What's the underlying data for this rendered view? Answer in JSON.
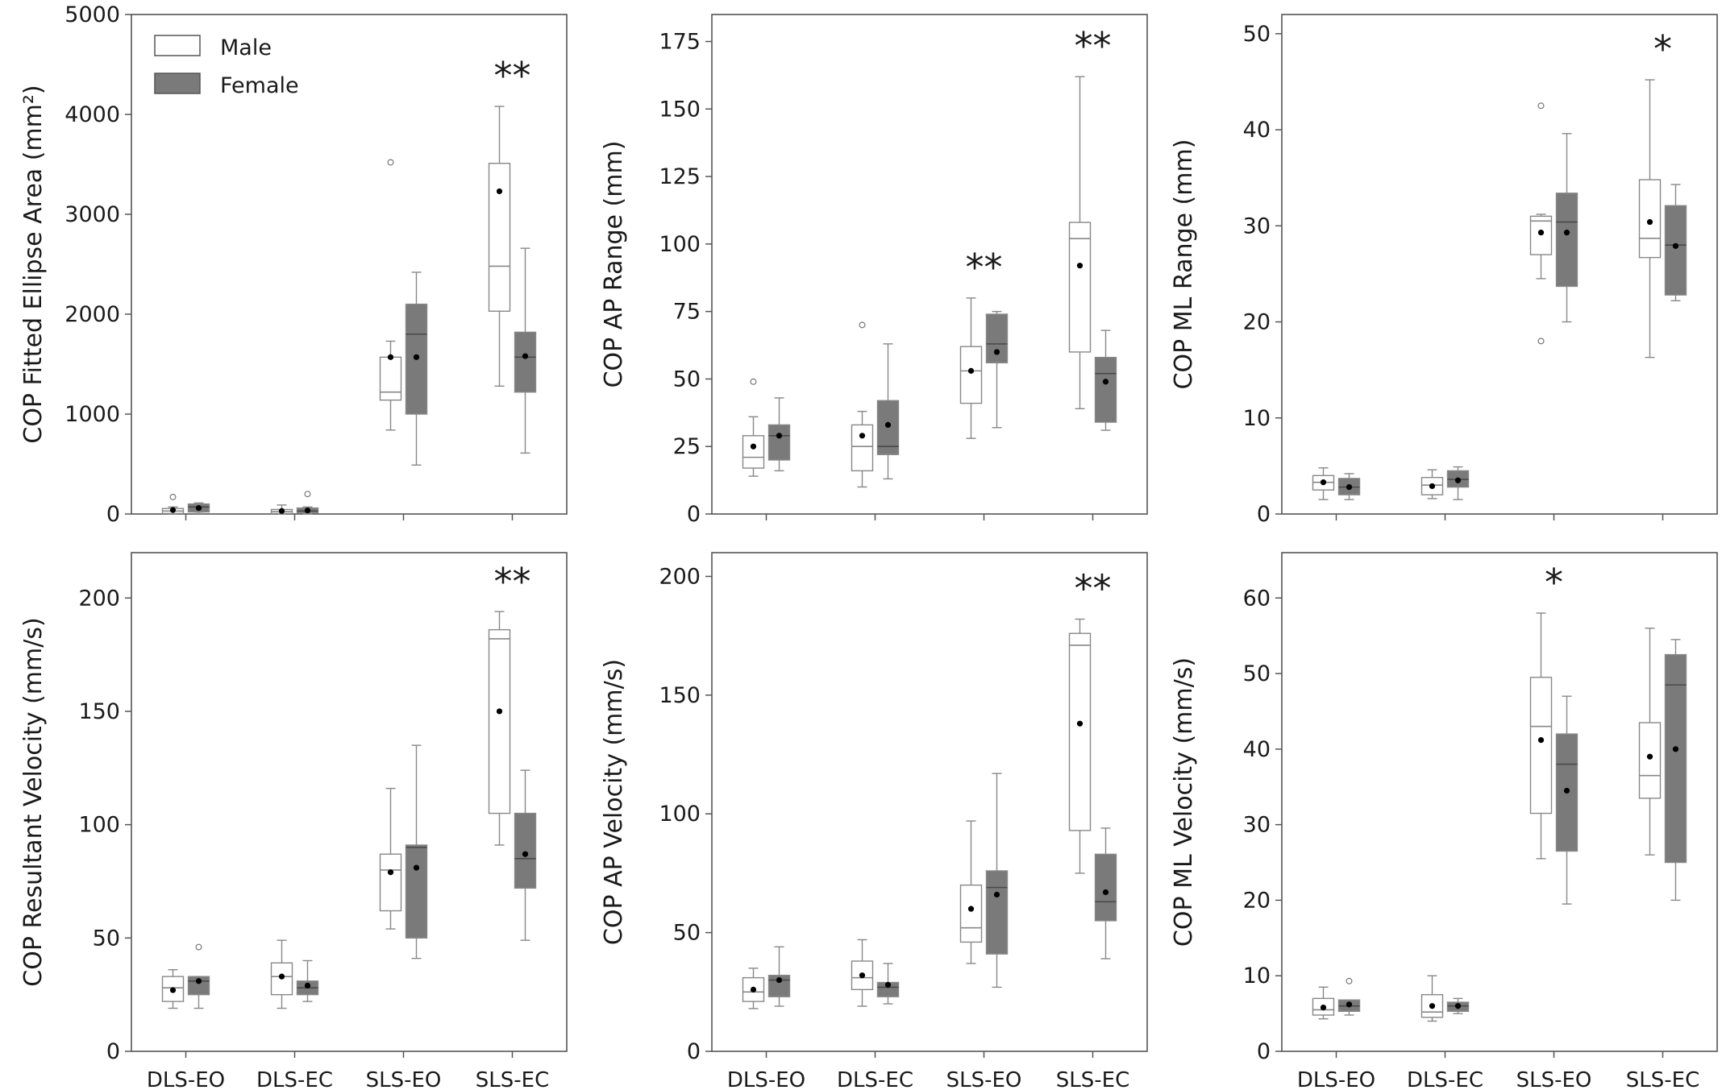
{
  "legend": {
    "entries": [
      {
        "label": "Male",
        "color": "#ffffff"
      },
      {
        "label": "Female",
        "color": "#7a7a7a"
      }
    ]
  },
  "colors": {
    "male_fill": "#ffffff",
    "female_fill": "#7a7a7a",
    "stroke": "#888888"
  },
  "chart_data": [
    {
      "type": "box",
      "ylabel": "COP Fitted Ellipse Area (mm²)",
      "ylim": [
        0,
        5000
      ],
      "yticks": [
        0,
        1000,
        2000,
        3000,
        4000,
        5000
      ],
      "categories": [
        "DLS-EO",
        "DLS-EC",
        "SLS-EO",
        "SLS-EC"
      ],
      "show_category_labels": false,
      "significance": [
        "",
        "",
        "",
        "**"
      ],
      "series": [
        {
          "name": "Male",
          "boxes": [
            {
              "whislo": 0,
              "q1": 5,
              "med": 30,
              "q3": 55,
              "whishi": 70,
              "mean": 40,
              "outliers": [
                170
              ]
            },
            {
              "whislo": 0,
              "q1": 5,
              "med": 25,
              "q3": 45,
              "whishi": 90,
              "mean": 30,
              "outliers": []
            },
            {
              "whislo": 840,
              "q1": 1140,
              "med": 1220,
              "q3": 1570,
              "whishi": 1730,
              "mean": 1570,
              "outliers": [
                3520
              ]
            },
            {
              "whislo": 1280,
              "q1": 2030,
              "med": 2480,
              "q3": 3510,
              "whishi": 4080,
              "mean": 3230,
              "outliers": []
            }
          ]
        },
        {
          "name": "Female",
          "boxes": [
            {
              "whislo": 5,
              "q1": 20,
              "med": 70,
              "q3": 100,
              "whishi": 110,
              "mean": 60,
              "outliers": []
            },
            {
              "whislo": 0,
              "q1": 10,
              "med": 30,
              "q3": 60,
              "whishi": 70,
              "mean": 35,
              "outliers": [
                200
              ]
            },
            {
              "whislo": 490,
              "q1": 1000,
              "med": 1800,
              "q3": 2100,
              "whishi": 2420,
              "mean": 1570,
              "outliers": []
            },
            {
              "whislo": 610,
              "q1": 1220,
              "med": 1570,
              "q3": 1820,
              "whishi": 2660,
              "mean": 1580,
              "outliers": []
            }
          ]
        }
      ]
    },
    {
      "type": "box",
      "ylabel": "COP AP Range (mm)",
      "ylim": [
        0,
        185
      ],
      "yticks": [
        0,
        25,
        50,
        75,
        100,
        125,
        150,
        175
      ],
      "categories": [
        "DLS-EO",
        "DLS-EC",
        "SLS-EO",
        "SLS-EC"
      ],
      "show_category_labels": false,
      "significance": [
        "",
        "",
        "**",
        "**"
      ],
      "series": [
        {
          "name": "Male",
          "boxes": [
            {
              "whislo": 14,
              "q1": 17,
              "med": 21,
              "q3": 29,
              "whishi": 36,
              "mean": 25,
              "outliers": [
                49
              ]
            },
            {
              "whislo": 10,
              "q1": 16,
              "med": 25,
              "q3": 33,
              "whishi": 38,
              "mean": 29,
              "outliers": [
                70
              ]
            },
            {
              "whislo": 28,
              "q1": 41,
              "med": 53,
              "q3": 62,
              "whishi": 80,
              "mean": 53,
              "outliers": []
            },
            {
              "whislo": 39,
              "q1": 60,
              "med": 102,
              "q3": 108,
              "whishi": 162,
              "mean": 92,
              "outliers": []
            }
          ]
        },
        {
          "name": "Female",
          "boxes": [
            {
              "whislo": 16,
              "q1": 20,
              "med": 29,
              "q3": 33,
              "whishi": 43,
              "mean": 29,
              "outliers": []
            },
            {
              "whislo": 13,
              "q1": 22,
              "med": 25,
              "q3": 42,
              "whishi": 63,
              "mean": 33,
              "outliers": []
            },
            {
              "whislo": 32,
              "q1": 56,
              "med": 63,
              "q3": 74,
              "whishi": 75,
              "mean": 60,
              "outliers": []
            },
            {
              "whislo": 31,
              "q1": 34,
              "med": 52,
              "q3": 58,
              "whishi": 68,
              "mean": 49,
              "outliers": []
            }
          ]
        }
      ]
    },
    {
      "type": "box",
      "ylabel": "COP ML Range (mm)",
      "ylim": [
        0,
        52
      ],
      "yticks": [
        0,
        10,
        20,
        30,
        40,
        50
      ],
      "categories": [
        "DLS-EO",
        "DLS-EC",
        "SLS-EO",
        "SLS-EC"
      ],
      "show_category_labels": false,
      "significance": [
        "",
        "",
        "",
        "*"
      ],
      "series": [
        {
          "name": "Male",
          "boxes": [
            {
              "whislo": 1.5,
              "q1": 2.5,
              "med": 3.3,
              "q3": 4.0,
              "whishi": 4.8,
              "mean": 3.3,
              "outliers": []
            },
            {
              "whislo": 1.6,
              "q1": 2.0,
              "med": 3.0,
              "q3": 3.8,
              "whishi": 4.6,
              "mean": 2.9,
              "outliers": []
            },
            {
              "whislo": 24.5,
              "q1": 27.0,
              "med": 30.5,
              "q3": 31.0,
              "whishi": 31.2,
              "mean": 29.3,
              "outliers": [
                42.5,
                18.0
              ]
            },
            {
              "whislo": 16.3,
              "q1": 26.7,
              "med": 28.7,
              "q3": 34.8,
              "whishi": 45.2,
              "mean": 30.4,
              "outliers": []
            }
          ]
        },
        {
          "name": "Female",
          "boxes": [
            {
              "whislo": 1.5,
              "q1": 2.0,
              "med": 2.8,
              "q3": 3.7,
              "whishi": 4.2,
              "mean": 2.8,
              "outliers": []
            },
            {
              "whislo": 1.5,
              "q1": 2.8,
              "med": 3.6,
              "q3": 4.5,
              "whishi": 4.9,
              "mean": 3.5,
              "outliers": []
            },
            {
              "whislo": 20.0,
              "q1": 23.7,
              "med": 30.4,
              "q3": 33.4,
              "whishi": 39.6,
              "mean": 29.3,
              "outliers": []
            },
            {
              "whislo": 22.2,
              "q1": 22.8,
              "med": 28.0,
              "q3": 32.1,
              "whishi": 34.3,
              "mean": 27.9,
              "outliers": []
            }
          ]
        }
      ]
    },
    {
      "type": "box",
      "ylabel": "COP Resultant Velocity (mm/s)",
      "ylim": [
        0,
        220
      ],
      "yticks": [
        0,
        50,
        100,
        150,
        200
      ],
      "categories": [
        "DLS-EO",
        "DLS-EC",
        "SLS-EO",
        "SLS-EC"
      ],
      "show_category_labels": true,
      "significance": [
        "",
        "",
        "",
        "**"
      ],
      "series": [
        {
          "name": "Male",
          "boxes": [
            {
              "whislo": 19,
              "q1": 22,
              "med": 28,
              "q3": 33,
              "whishi": 36,
              "mean": 27,
              "outliers": []
            },
            {
              "whislo": 19,
              "q1": 25,
              "med": 33,
              "q3": 39,
              "whishi": 49,
              "mean": 33,
              "outliers": []
            },
            {
              "whislo": 54,
              "q1": 62,
              "med": 80,
              "q3": 87,
              "whishi": 116,
              "mean": 79,
              "outliers": []
            },
            {
              "whislo": 91,
              "q1": 105,
              "med": 182,
              "q3": 186,
              "whishi": 194,
              "mean": 150,
              "outliers": []
            }
          ]
        },
        {
          "name": "Female",
          "boxes": [
            {
              "whislo": 19,
              "q1": 25,
              "med": 31,
              "q3": 33,
              "whishi": 33,
              "mean": 31,
              "outliers": [
                46
              ]
            },
            {
              "whislo": 22,
              "q1": 25,
              "med": 28,
              "q3": 31,
              "whishi": 40,
              "mean": 29,
              "outliers": []
            },
            {
              "whislo": 41,
              "q1": 50,
              "med": 90,
              "q3": 91,
              "whishi": 135,
              "mean": 81,
              "outliers": []
            },
            {
              "whislo": 49,
              "q1": 72,
              "med": 85,
              "q3": 105,
              "whishi": 124,
              "mean": 87,
              "outliers": []
            }
          ]
        }
      ]
    },
    {
      "type": "box",
      "ylabel": "COP AP Velocity (mm/s)",
      "ylim": [
        0,
        210
      ],
      "yticks": [
        0,
        50,
        100,
        150,
        200
      ],
      "categories": [
        "DLS-EO",
        "DLS-EC",
        "SLS-EO",
        "SLS-EC"
      ],
      "show_category_labels": true,
      "significance": [
        "",
        "",
        "",
        "**"
      ],
      "series": [
        {
          "name": "Male",
          "boxes": [
            {
              "whislo": 18,
              "q1": 21,
              "med": 25,
              "q3": 31,
              "whishi": 35,
              "mean": 26,
              "outliers": []
            },
            {
              "whislo": 19,
              "q1": 26,
              "med": 31,
              "q3": 38,
              "whishi": 47,
              "mean": 32,
              "outliers": []
            },
            {
              "whislo": 37,
              "q1": 46,
              "med": 52,
              "q3": 70,
              "whishi": 97,
              "mean": 60,
              "outliers": []
            },
            {
              "whislo": 75,
              "q1": 93,
              "med": 171,
              "q3": 176,
              "whishi": 182,
              "mean": 138,
              "outliers": []
            }
          ]
        },
        {
          "name": "Female",
          "boxes": [
            {
              "whislo": 19,
              "q1": 23,
              "med": 30,
              "q3": 32,
              "whishi": 44,
              "mean": 30,
              "outliers": []
            },
            {
              "whislo": 20,
              "q1": 23,
              "med": 27,
              "q3": 29,
              "whishi": 37,
              "mean": 28,
              "outliers": []
            },
            {
              "whislo": 27,
              "q1": 41,
              "med": 69,
              "q3": 76,
              "whishi": 117,
              "mean": 66,
              "outliers": []
            },
            {
              "whislo": 39,
              "q1": 55,
              "med": 63,
              "q3": 83,
              "whishi": 94,
              "mean": 67,
              "outliers": []
            }
          ]
        }
      ]
    },
    {
      "type": "box",
      "ylabel": "COP ML Velocity (mm/s)",
      "ylim": [
        0,
        66
      ],
      "yticks": [
        0,
        10,
        20,
        30,
        40,
        50,
        60
      ],
      "categories": [
        "DLS-EO",
        "DLS-EC",
        "SLS-EO",
        "SLS-EC"
      ],
      "show_category_labels": true,
      "significance": [
        "",
        "",
        "*",
        ""
      ],
      "series": [
        {
          "name": "Male",
          "boxes": [
            {
              "whislo": 4.3,
              "q1": 4.8,
              "med": 5.5,
              "q3": 7.0,
              "whishi": 8.5,
              "mean": 5.8,
              "outliers": []
            },
            {
              "whislo": 4.0,
              "q1": 4.5,
              "med": 5.2,
              "q3": 7.5,
              "whishi": 10.0,
              "mean": 6.0,
              "outliers": []
            },
            {
              "whislo": 25.5,
              "q1": 31.5,
              "med": 43.0,
              "q3": 49.5,
              "whishi": 58.0,
              "mean": 41.2,
              "outliers": []
            },
            {
              "whislo": 26.0,
              "q1": 33.5,
              "med": 36.5,
              "q3": 43.5,
              "whishi": 56.0,
              "mean": 39.0,
              "outliers": []
            }
          ]
        },
        {
          "name": "Female",
          "boxes": [
            {
              "whislo": 4.8,
              "q1": 5.3,
              "med": 6.0,
              "q3": 6.8,
              "whishi": 6.8,
              "mean": 6.2,
              "outliers": [
                9.3
              ]
            },
            {
              "whislo": 5.0,
              "q1": 5.3,
              "med": 6.0,
              "q3": 6.5,
              "whishi": 7.0,
              "mean": 6.0,
              "outliers": []
            },
            {
              "whislo": 19.5,
              "q1": 26.5,
              "med": 38.0,
              "q3": 42.0,
              "whishi": 47.0,
              "mean": 34.5,
              "outliers": []
            },
            {
              "whislo": 20.0,
              "q1": 25.0,
              "med": 48.5,
              "q3": 52.5,
              "whishi": 54.5,
              "mean": 40.0,
              "outliers": []
            }
          ]
        }
      ]
    }
  ]
}
